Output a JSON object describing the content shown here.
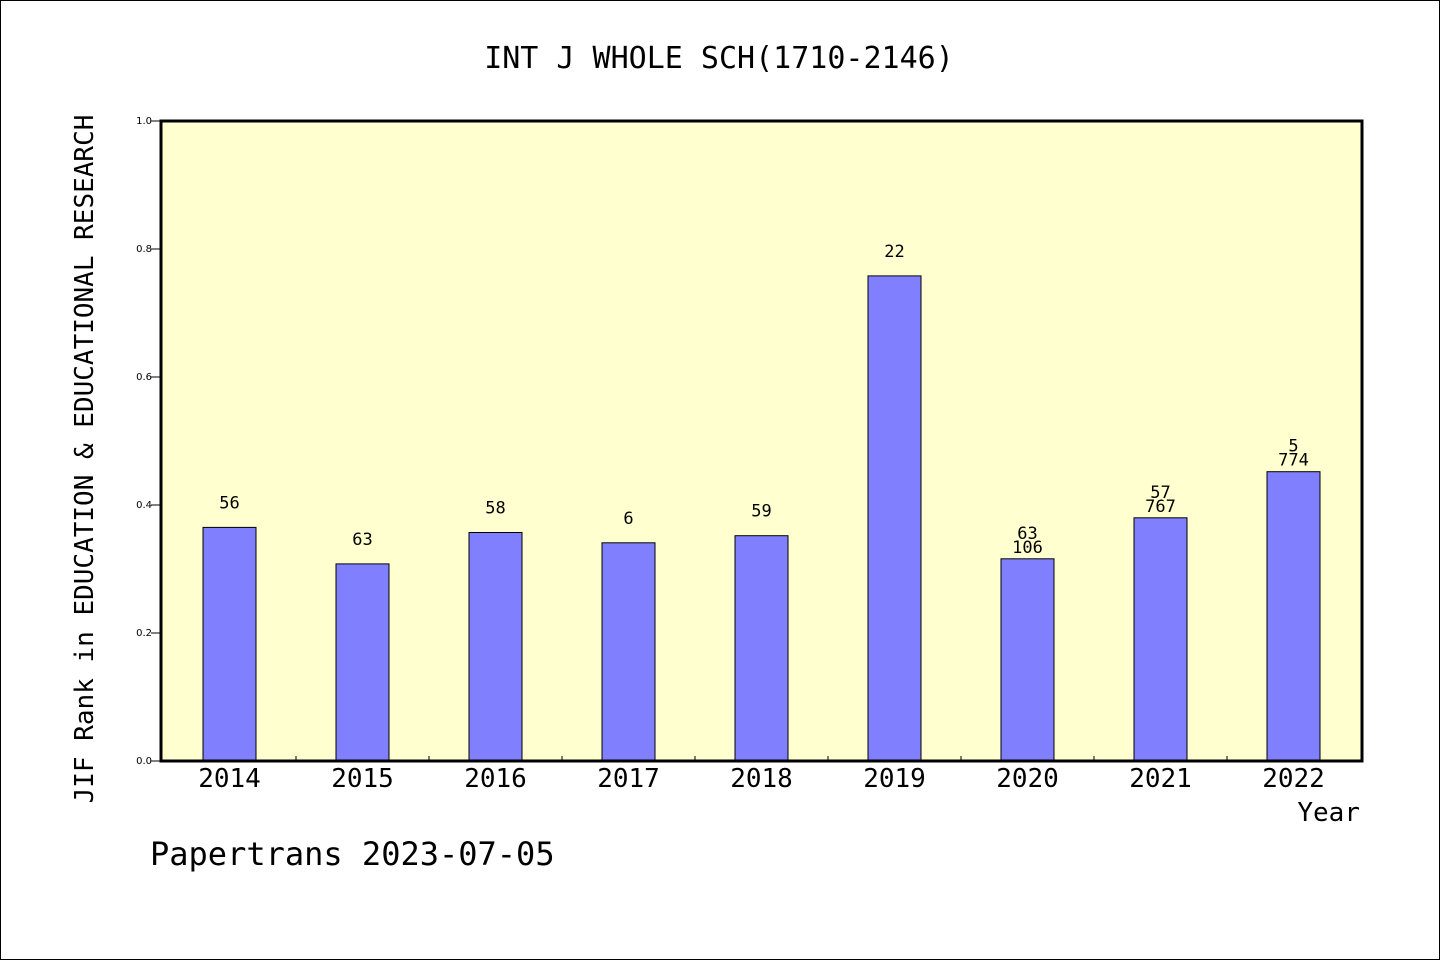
{
  "chart_data": {
    "type": "bar",
    "title": "INT J WHOLE SCH(1710-2146)",
    "xlabel": "Year",
    "ylabel": "JIF Rank in EDUCATION & EDUCATIONAL RESEARCH",
    "ylim": [
      0,
      1.0
    ],
    "yticks": [
      "0.0",
      "0.2",
      "0.4",
      "0.6",
      "0.8",
      "1.0"
    ],
    "ytick_values": [
      0,
      0.2,
      0.4,
      0.6,
      0.8,
      1.0
    ],
    "categories": [
      "2014",
      "2015",
      "2016",
      "2017",
      "2018",
      "2019",
      "2020",
      "2021",
      "2022"
    ],
    "values": [
      0.365,
      0.308,
      0.357,
      0.341,
      0.352,
      0.758,
      0.316,
      0.38,
      0.452
    ],
    "labels_top": [
      "56",
      "63",
      "58",
      "6",
      "59",
      "22",
      "63",
      "57",
      "5"
    ],
    "labels_bottom": [
      "",
      "",
      "",
      "",
      "",
      "",
      "106",
      "767",
      "774"
    ],
    "grid": false,
    "colors": {
      "bar": "#8080ff",
      "plot_bg": "#ffffd0",
      "axis": "#000000"
    }
  },
  "footer": "Papertrans 2023-07-05"
}
